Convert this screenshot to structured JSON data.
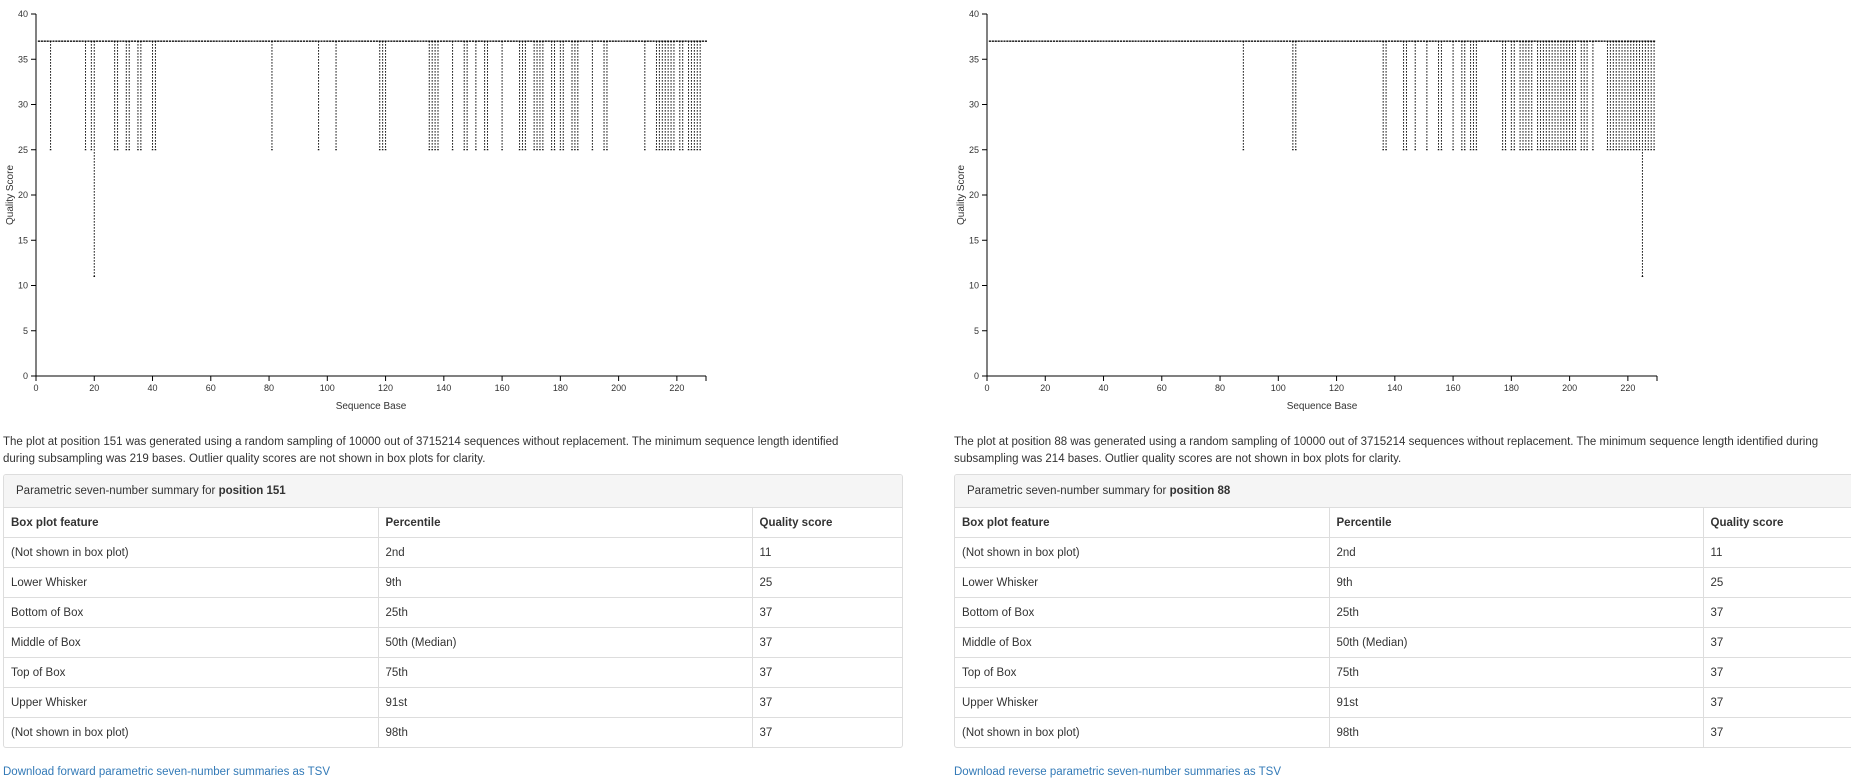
{
  "panels": [
    {
      "description": "The plot at position 151 was generated using a random sampling of 10000 out of 3715214 sequences without replacement. The minimum sequence length identified during subsampling was 219 bases. Outlier quality scores are not shown in box plots for clarity.",
      "summary_heading_prefix": "Parametric seven-number summary for ",
      "summary_heading_position": "position 151",
      "table": {
        "headers": [
          "Box plot feature",
          "Percentile",
          "Quality score"
        ],
        "rows": [
          [
            "(Not shown in box plot)",
            "2nd",
            "11"
          ],
          [
            "Lower Whisker",
            "9th",
            "25"
          ],
          [
            "Bottom of Box",
            "25th",
            "37"
          ],
          [
            "Middle of Box",
            "50th (Median)",
            "37"
          ],
          [
            "Top of Box",
            "75th",
            "37"
          ],
          [
            "Upper Whisker",
            "91st",
            "37"
          ],
          [
            "(Not shown in box plot)",
            "98th",
            "37"
          ]
        ]
      },
      "download_link": "Download forward parametric seven-number summaries as TSV"
    },
    {
      "description": "The plot at position 88 was generated using a random sampling of 10000 out of 3715214 sequences without replacement. The minimum sequence length identified during subsampling was 214 bases. Outlier quality scores are not shown in box plots for clarity.",
      "summary_heading_prefix": "Parametric seven-number summary for ",
      "summary_heading_position": "position 88",
      "table": {
        "headers": [
          "Box plot feature",
          "Percentile",
          "Quality score"
        ],
        "rows": [
          [
            "(Not shown in box plot)",
            "2nd",
            "11"
          ],
          [
            "Lower Whisker",
            "9th",
            "25"
          ],
          [
            "Bottom of Box",
            "25th",
            "37"
          ],
          [
            "Middle of Box",
            "50th (Median)",
            "37"
          ],
          [
            "Top of Box",
            "75th",
            "37"
          ],
          [
            "Upper Whisker",
            "91st",
            "37"
          ],
          [
            "(Not shown in box plot)",
            "98th",
            "37"
          ]
        ]
      },
      "download_link": "Download reverse parametric seven-number summaries as TSV"
    }
  ],
  "chart_data": [
    {
      "type": "box",
      "xlabel": "Sequence Base",
      "ylabel": "Quality Score",
      "xlim": [
        0,
        230
      ],
      "ylim": [
        0,
        40
      ],
      "xticks": [
        0,
        20,
        40,
        60,
        80,
        100,
        120,
        140,
        160,
        180,
        200,
        220
      ],
      "yticks": [
        0,
        5,
        10,
        15,
        20,
        25,
        30,
        35,
        40
      ],
      "x_range": [
        1,
        230
      ],
      "box_q1": 37,
      "box_median": 37,
      "box_q3": 37,
      "upper_whisker": 37,
      "default_lower_whisker": 37,
      "lower_whisker_25_positions": [
        5,
        17,
        19,
        27,
        28,
        31,
        32,
        35,
        36,
        40,
        41,
        81,
        97,
        103,
        118,
        119,
        120,
        135,
        136,
        137,
        138,
        143,
        147,
        148,
        151,
        154,
        155,
        160,
        166,
        167,
        168,
        171,
        172,
        173,
        174,
        177,
        178,
        180,
        181,
        184,
        185,
        186,
        191,
        195,
        196,
        209,
        213,
        214,
        215,
        216,
        217,
        218,
        219,
        221,
        222,
        224,
        225,
        226,
        227,
        228
      ],
      "lower_whisker_11_positions": [
        20
      ]
    },
    {
      "type": "box",
      "xlabel": "Sequence Base",
      "ylabel": "Quality Score",
      "xlim": [
        0,
        230
      ],
      "ylim": [
        0,
        40
      ],
      "xticks": [
        0,
        20,
        40,
        60,
        80,
        100,
        120,
        140,
        160,
        180,
        200,
        220
      ],
      "yticks": [
        0,
        5,
        10,
        15,
        20,
        25,
        30,
        35,
        40
      ],
      "x_range": [
        1,
        229
      ],
      "box_q1": 37,
      "box_median": 37,
      "box_q3": 37,
      "upper_whisker": 37,
      "default_lower_whisker": 37,
      "lower_whisker_25_positions": [
        88,
        105,
        106,
        136,
        137,
        143,
        144,
        147,
        151,
        155,
        156,
        160,
        163,
        164,
        166,
        167,
        168,
        177,
        178,
        180,
        181,
        183,
        184,
        185,
        186,
        187,
        189,
        190,
        191,
        192,
        193,
        194,
        195,
        196,
        197,
        198,
        199,
        200,
        201,
        202,
        204,
        205,
        206,
        208,
        213,
        214,
        215,
        216,
        217,
        218,
        219,
        220,
        221,
        222,
        223,
        224,
        225,
        226,
        227,
        228,
        229
      ],
      "lower_whisker_11_positions": [
        225
      ]
    }
  ]
}
